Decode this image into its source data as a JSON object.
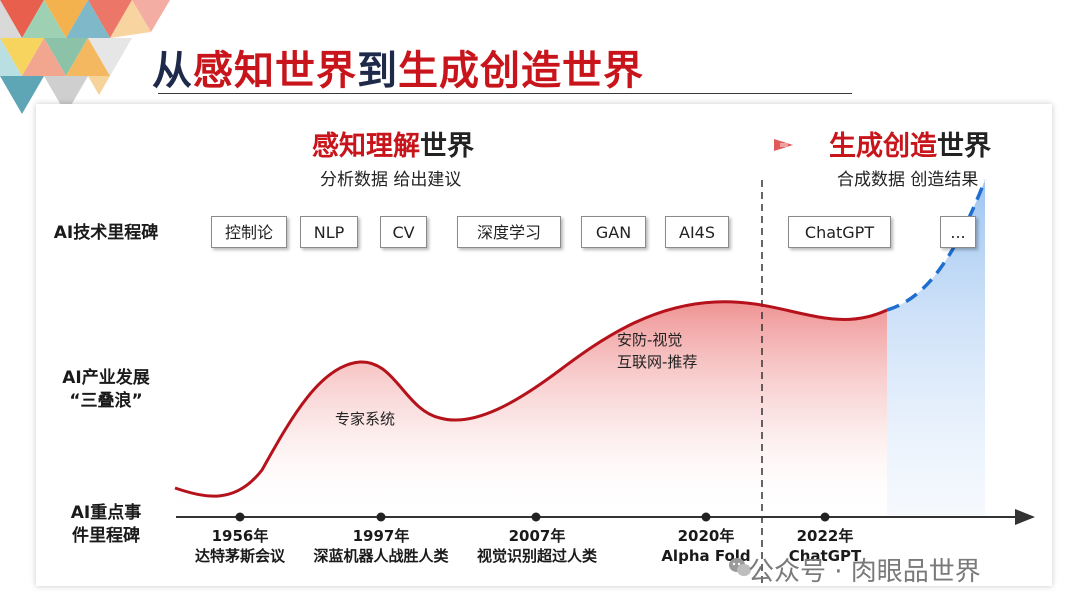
{
  "title": {
    "part1": "从",
    "part2": "感知世界",
    "part3": "到",
    "part4": "生成创造世界"
  },
  "left_era": {
    "title_red": "感知理解",
    "title_dark": "世界",
    "subtitle": "分析数据 给出建议"
  },
  "right_era": {
    "title_red": "生成创造",
    "title_dark": "世界",
    "subtitle": "合成数据 创造结果"
  },
  "row_labels": {
    "tech": "AI技术里程碑",
    "industry_line1": "AI产业发展",
    "industry_line2": "“三叠浪”",
    "events_line1": "AI重点事",
    "events_line2": "件里程碑"
  },
  "tech_milestones": [
    "控制论",
    "NLP",
    "CV",
    "深度学习",
    "GAN",
    "AI4S",
    "ChatGPT",
    "..."
  ],
  "wave_labels": {
    "wave1": "专家系统",
    "wave2_line1": "安防-视觉",
    "wave2_line2": "互联网-推荐"
  },
  "events": [
    {
      "year": "1956年",
      "desc": "达特茅斯会议"
    },
    {
      "year": "1997年",
      "desc": "深蓝机器人战胜人类"
    },
    {
      "year": "2007年",
      "desc": "视觉识别超过人类"
    },
    {
      "year": "2020年",
      "desc": "Alpha Fold"
    },
    {
      "year": "2022年",
      "desc": "ChatGPT"
    }
  ],
  "watermark": "公众号 · 肉眼品世界",
  "colors": {
    "accent_red": "#c8151b",
    "navy": "#1f2a4a",
    "curve_red": "#b5121b",
    "future_blue": "#1f6fd1"
  }
}
